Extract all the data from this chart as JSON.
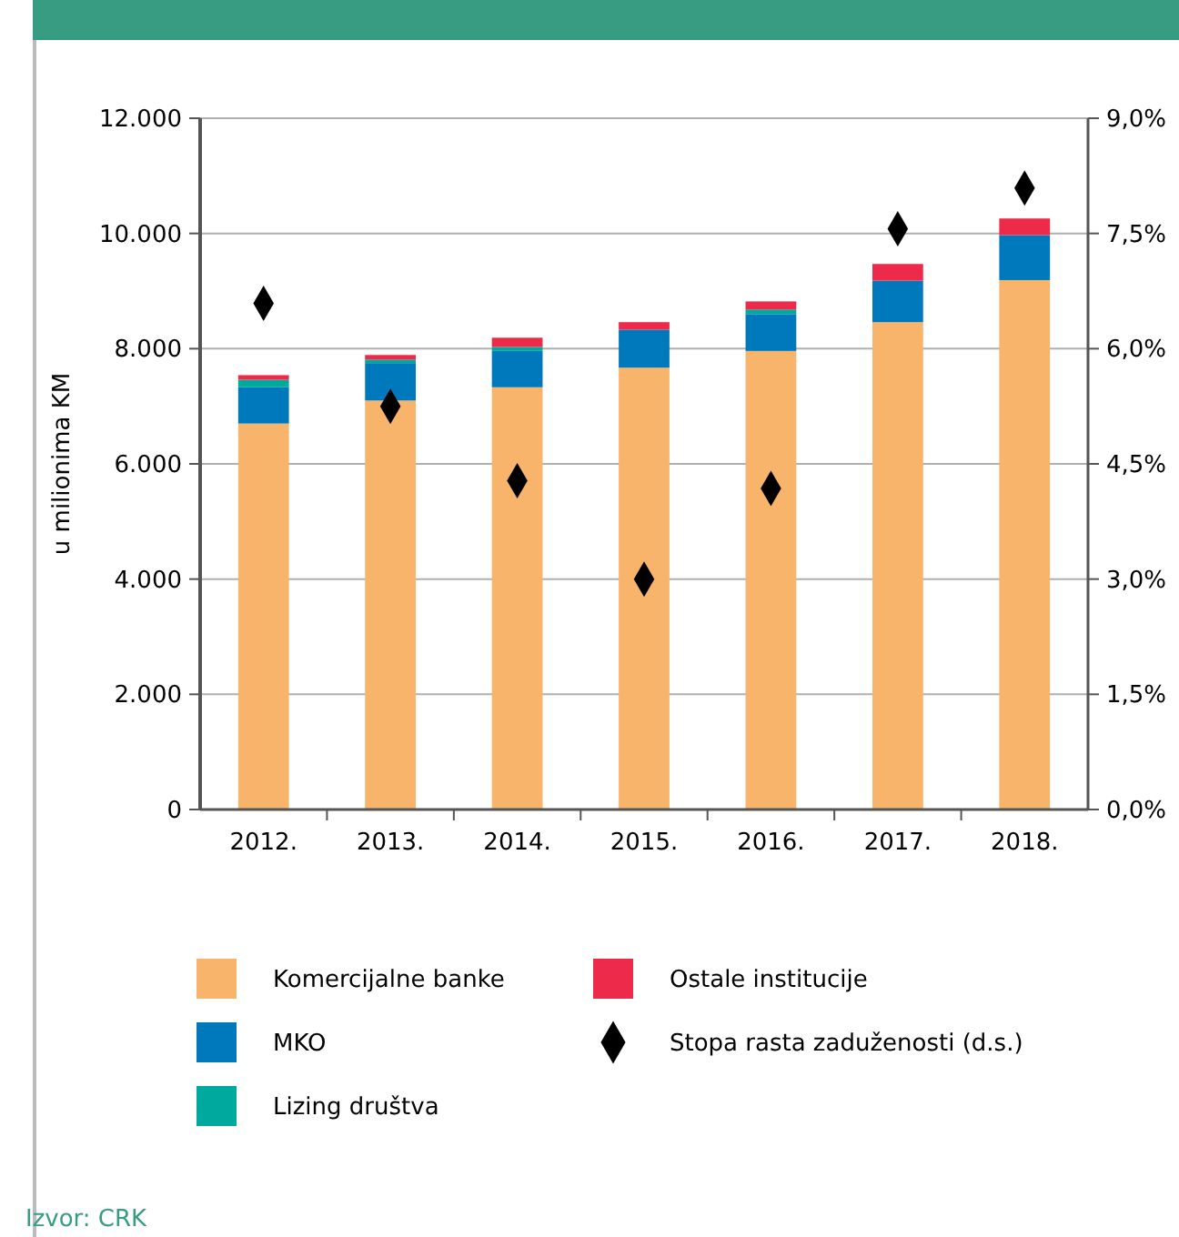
{
  "chart_data": {
    "type": "bar",
    "stacked": true,
    "ylabel": "u milionima  KM",
    "categories": [
      "2012.",
      "2013.",
      "2014.",
      "2015.",
      "2016.",
      "2017.",
      "2018."
    ],
    "series": [
      {
        "name": "Komercijalne banke",
        "color": "#f9b46b",
        "values": [
          6700,
          7100,
          7330,
          7670,
          7960,
          8460,
          9190
        ]
      },
      {
        "name": "MKO",
        "color": "#0079bc",
        "values": [
          630,
          650,
          630,
          660,
          640,
          720,
          780
        ]
      },
      {
        "name": "Lizing društva",
        "color": "#00a99d",
        "values": [
          130,
          60,
          70,
          0,
          80,
          0,
          0
        ]
      },
      {
        "name": "Ostale institucije",
        "color": "#ee2a4a",
        "values": [
          80,
          80,
          160,
          130,
          140,
          290,
          290
        ]
      },
      {
        "name": "Stopa rasta zaduženosti (d.s.)",
        "type": "scatter",
        "axis": "y2",
        "marker": "diamond",
        "color": "#000000",
        "values": [
          6.59,
          5.25,
          4.28,
          3.0,
          4.18,
          7.56,
          8.09
        ]
      }
    ],
    "ylim": [
      0,
      12000
    ],
    "yticks": [
      {
        "value": 0,
        "label": "0"
      },
      {
        "value": 2000,
        "label": "2.000"
      },
      {
        "value": 4000,
        "label": "4.000"
      },
      {
        "value": 6000,
        "label": "6.000"
      },
      {
        "value": 8000,
        "label": "8.000"
      },
      {
        "value": 10000,
        "label": "10.000"
      },
      {
        "value": 12000,
        "label": "12.000"
      }
    ],
    "y2lim": [
      0,
      9
    ],
    "y2ticks": [
      {
        "value": 0,
        "label": "0,0%"
      },
      {
        "value": 1.5,
        "label": "1,5%"
      },
      {
        "value": 3,
        "label": "3,0%"
      },
      {
        "value": 4.5,
        "label": "4,5%"
      },
      {
        "value": 6,
        "label": "6,0%"
      },
      {
        "value": 7.5,
        "label": "7,5%"
      },
      {
        "value": 9,
        "label": "9,0%"
      }
    ],
    "grid": "y",
    "legend": "bottom",
    "annotations": [
      "Izvor: CRK"
    ]
  }
}
